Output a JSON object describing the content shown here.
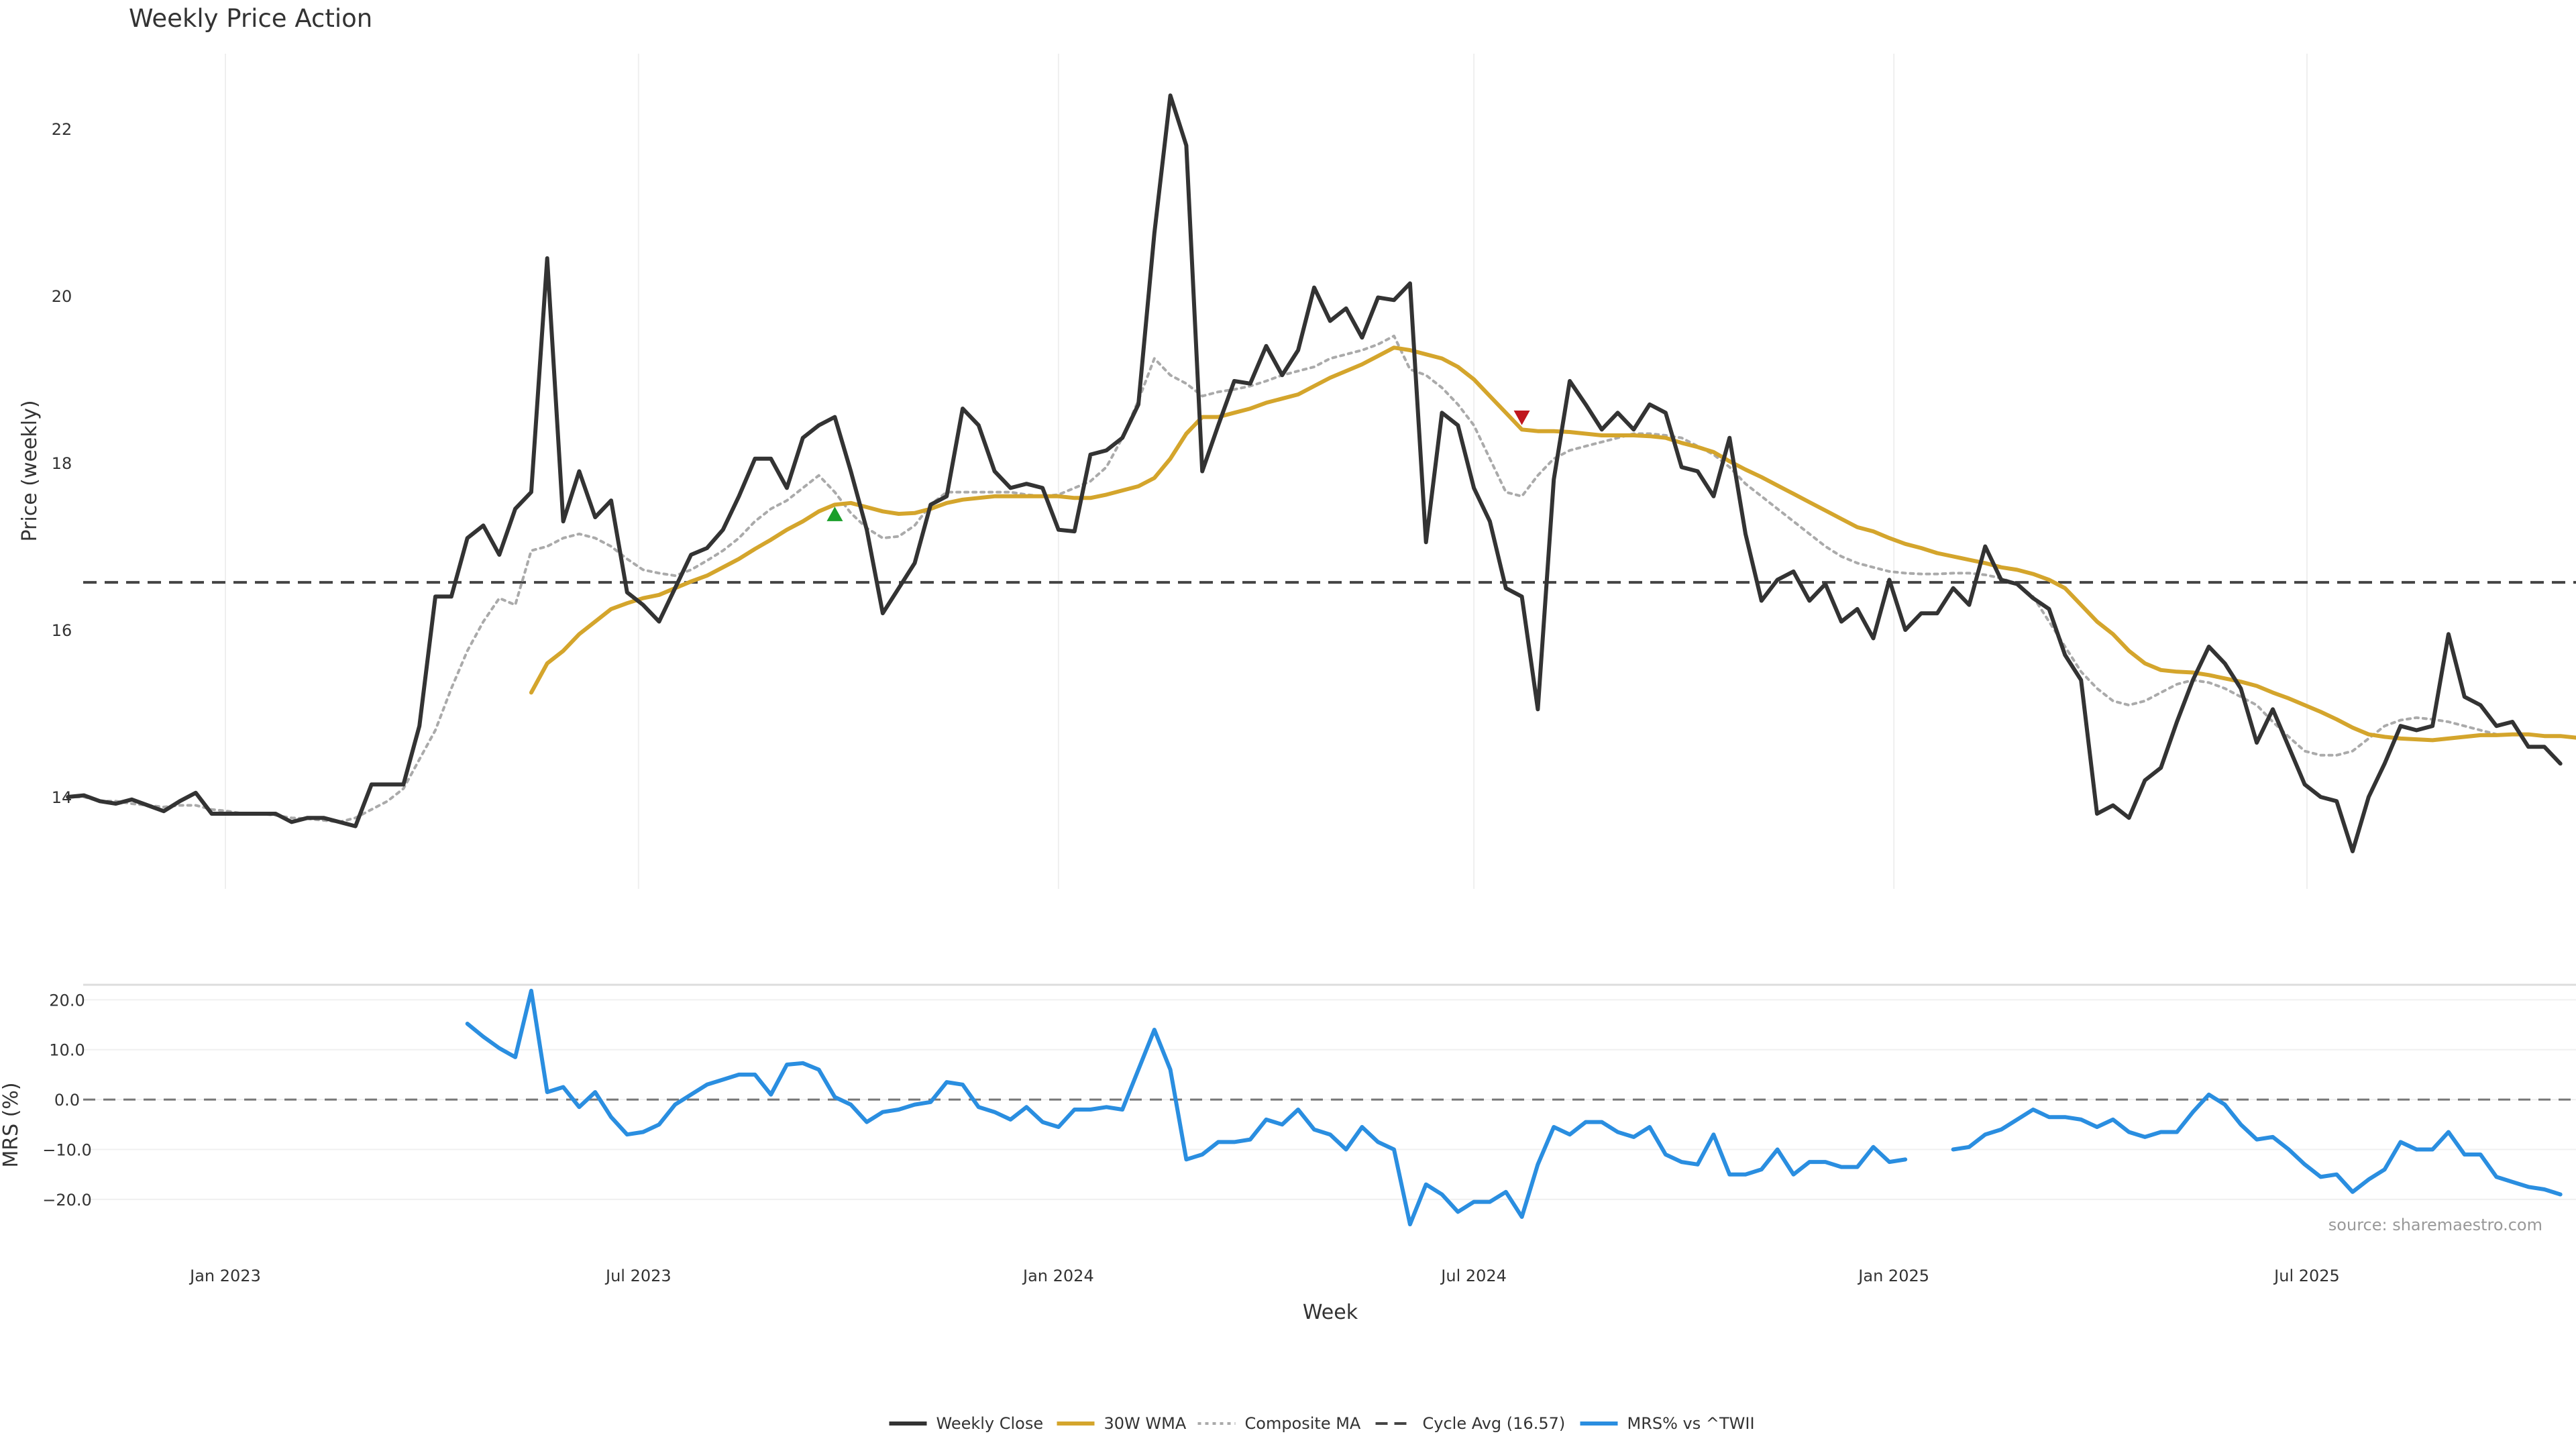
{
  "chart_data": {
    "type": "line",
    "title": "Weekly Price Action",
    "price_panel": {
      "ylabel": "Price (weekly)",
      "ylim": [
        12.9,
        22.9
      ],
      "yticks": [
        14,
        16,
        18,
        20,
        22
      ],
      "cycle_avg": 16.57,
      "x_start": "2022-10-24",
      "series": [
        {
          "name": "Weekly Close",
          "color": "#333333",
          "style": "solid",
          "offset": 0,
          "values": [
            14.0,
            14.02,
            13.95,
            13.92,
            13.97,
            13.9,
            13.83,
            13.95,
            14.05,
            13.8,
            13.8,
            13.8,
            13.8,
            13.8,
            13.7,
            13.75,
            13.75,
            13.7,
            13.65,
            14.15,
            14.15,
            14.15,
            14.85,
            16.4,
            16.4,
            17.1,
            17.25,
            16.9,
            17.45,
            17.65,
            20.45,
            17.3,
            17.9,
            17.35,
            17.55,
            16.45,
            16.3,
            16.1,
            16.5,
            16.9,
            16.98,
            17.2,
            17.6,
            18.05,
            18.05,
            17.7,
            18.3,
            18.45,
            18.55,
            17.9,
            17.2,
            16.2,
            16.5,
            16.8,
            17.5,
            17.6,
            18.65,
            18.45,
            17.9,
            17.7,
            17.75,
            17.7,
            17.2,
            17.18,
            18.1,
            18.15,
            18.3,
            18.7,
            20.75,
            22.4,
            21.8,
            17.9,
            18.45,
            18.98,
            18.95,
            19.4,
            19.05,
            19.35,
            20.1,
            19.7,
            19.85,
            19.5,
            19.98,
            19.95,
            20.15,
            17.05,
            18.6,
            18.45,
            17.7,
            17.3,
            16.5,
            16.4,
            15.05,
            17.8,
            18.98,
            18.7,
            18.4,
            18.6,
            18.4,
            18.7,
            18.6,
            17.95,
            17.9,
            17.6,
            18.3,
            17.15,
            16.35,
            16.6,
            16.7,
            16.35,
            16.55,
            16.1,
            16.25,
            15.9,
            16.6,
            16.0,
            16.2,
            16.2,
            16.5,
            16.3,
            17.0,
            16.6,
            16.55,
            16.38,
            16.25,
            15.7,
            15.4,
            13.8,
            13.9,
            13.75,
            14.2,
            14.35,
            14.9,
            15.4,
            15.8,
            15.6,
            15.3,
            14.65,
            15.05,
            14.6,
            14.15,
            14.0,
            13.95,
            13.35,
            14.0,
            14.4,
            14.85,
            14.8,
            14.85,
            15.95,
            15.2,
            15.1,
            14.85,
            14.9,
            14.6,
            14.6,
            14.4
          ]
        },
        {
          "name": "30W WMA",
          "color": "#d4a52c",
          "style": "solid",
          "offset": 29,
          "values": [
            15.25,
            15.6,
            15.75,
            15.95,
            16.1,
            16.25,
            16.32,
            16.38,
            16.42,
            16.5,
            16.58,
            16.65,
            16.75,
            16.85,
            16.97,
            17.08,
            17.2,
            17.3,
            17.42,
            17.5,
            17.52,
            17.47,
            17.42,
            17.39,
            17.4,
            17.45,
            17.52,
            17.56,
            17.58,
            17.6,
            17.6,
            17.6,
            17.6,
            17.6,
            17.58,
            17.58,
            17.62,
            17.67,
            17.72,
            17.82,
            18.05,
            18.35,
            18.55,
            18.55,
            18.6,
            18.65,
            18.72,
            18.77,
            18.82,
            18.92,
            19.02,
            19.1,
            19.18,
            19.28,
            19.38,
            19.35,
            19.3,
            19.25,
            19.15,
            19.0,
            18.8,
            18.6,
            18.4,
            18.38,
            18.38,
            18.37,
            18.35,
            18.33,
            18.33,
            18.33,
            18.32,
            18.3,
            18.24,
            18.19,
            18.13,
            18.02,
            17.92,
            17.83,
            17.73,
            17.63,
            17.53,
            17.43,
            17.33,
            17.23,
            17.18,
            17.1,
            17.03,
            16.98,
            16.92,
            16.88,
            16.84,
            16.8,
            16.75,
            16.72,
            16.67,
            16.6,
            16.5,
            16.3,
            16.1,
            15.95,
            15.75,
            15.6,
            15.52,
            15.5,
            15.49,
            15.46,
            15.42,
            15.38,
            15.33,
            15.25,
            15.18,
            15.1,
            15.02,
            14.93,
            14.83,
            14.75,
            14.72,
            14.7,
            14.69,
            14.68,
            14.7,
            14.72,
            14.74,
            14.74,
            14.75,
            14.75,
            14.73,
            14.73,
            14.71
          ]
        },
        {
          "name": "Composite MA",
          "color": "#aaaaaa",
          "style": "dotted",
          "offset": 0,
          "values": [
            14.0,
            14.0,
            13.95,
            13.95,
            13.92,
            13.9,
            13.88,
            13.9,
            13.9,
            13.85,
            13.83,
            13.8,
            13.8,
            13.78,
            13.75,
            13.74,
            13.72,
            13.7,
            13.75,
            13.85,
            13.95,
            14.1,
            14.45,
            14.8,
            15.3,
            15.75,
            16.1,
            16.38,
            16.3,
            16.95,
            17.0,
            17.1,
            17.15,
            17.1,
            17.0,
            16.85,
            16.72,
            16.68,
            16.65,
            16.72,
            16.83,
            16.95,
            17.1,
            17.3,
            17.45,
            17.55,
            17.7,
            17.85,
            17.65,
            17.4,
            17.22,
            17.1,
            17.12,
            17.25,
            17.5,
            17.65,
            17.65,
            17.65,
            17.65,
            17.65,
            17.62,
            17.6,
            17.62,
            17.7,
            17.78,
            17.95,
            18.3,
            18.75,
            19.25,
            19.05,
            18.95,
            18.8,
            18.85,
            18.88,
            18.92,
            18.98,
            19.05,
            19.1,
            19.15,
            19.25,
            19.3,
            19.35,
            19.42,
            19.52,
            19.12,
            19.05,
            18.9,
            18.7,
            18.45,
            18.05,
            17.65,
            17.6,
            17.85,
            18.05,
            18.15,
            18.2,
            18.25,
            18.3,
            18.35,
            18.35,
            18.33,
            18.3,
            18.2,
            18.1,
            17.95,
            17.75,
            17.6,
            17.45,
            17.3,
            17.15,
            17.0,
            16.88,
            16.8,
            16.75,
            16.7,
            16.68,
            16.67,
            16.67,
            16.68,
            16.68,
            16.66,
            16.62,
            16.55,
            16.4,
            16.1,
            15.8,
            15.5,
            15.3,
            15.15,
            15.1,
            15.15,
            15.25,
            15.35,
            15.4,
            15.37,
            15.3,
            15.2,
            15.1,
            14.9,
            14.72,
            14.55,
            14.5,
            14.5,
            14.55,
            14.7,
            14.85,
            14.92,
            14.95,
            14.93,
            14.9,
            14.85,
            14.8,
            14.75
          ]
        }
      ],
      "markers": [
        {
          "type": "buy",
          "shape": "triangle-up",
          "color": "#1a9e2a",
          "x": "2023-09-25",
          "y": 17.38
        },
        {
          "type": "sell",
          "shape": "triangle-down",
          "color": "#c0161d",
          "x": "2024-07-22",
          "y": 18.55
        }
      ]
    },
    "mrs_panel": {
      "ylabel": "MRS (%)",
      "ylim": [
        -27,
        23
      ],
      "yticks": [
        20.0,
        10.0,
        0.0,
        -10.0,
        -20.0
      ],
      "ytick_labels": [
        "20.0",
        "10.0",
        "0.0",
        "−10.0",
        "−20.0"
      ],
      "series": [
        {
          "name": "MRS% vs ^TWII",
          "color": "#2a8ee0",
          "style": "solid",
          "offset": 25,
          "values": [
            15.2,
            12.6,
            10.3,
            8.5,
            21.8,
            1.5,
            2.5,
            -1.5,
            1.5,
            -3.5,
            -7.0,
            -6.5,
            -5.0,
            -1.0,
            1.0,
            3.0,
            4.0,
            5.0,
            5.0,
            1.0,
            7.0,
            7.3,
            6.0,
            0.5,
            -1.0,
            -4.5,
            -2.5,
            -2.0,
            -1.0,
            -0.5,
            3.5,
            3.0,
            -1.5,
            -2.5,
            -4.0,
            -1.5,
            -4.5,
            -5.5,
            -2.0,
            -2.0,
            -1.5,
            -2.0,
            6.0,
            14.0,
            6.0,
            -12.0,
            -11.0,
            -8.5,
            -8.5,
            -8.0,
            -4.0,
            -5.0,
            -2.0,
            -6.0,
            -7.0,
            -10.0,
            -5.5,
            -8.5,
            -10.0,
            -25.0,
            -17.0,
            -19.0,
            -22.5,
            -20.5,
            -20.5,
            -18.5,
            -23.5,
            -13.0,
            -5.5,
            -7.0,
            -4.5,
            -4.5,
            -6.5,
            -7.5,
            -5.5,
            -11.0,
            -12.5,
            -13.0,
            -7.0,
            -15.0,
            -15.0,
            -14.0,
            -10.0,
            -15.0,
            -12.5,
            -12.5,
            -13.5,
            -13.5,
            -9.5,
            -12.5,
            -12.0,
            null,
            null,
            -10.0,
            -9.5,
            -7.0,
            -6.0,
            -4.0,
            -2.0,
            -3.5,
            -3.5,
            -4.0,
            -5.5,
            -4.0,
            -6.5,
            -7.5,
            -6.5,
            -6.5,
            -2.5,
            1.0,
            -1.0,
            -5.0,
            -8.0,
            -7.5,
            -10.0,
            -13.0,
            -15.5,
            -15.0,
            -18.5,
            -16.0,
            -14.0,
            -8.5,
            -10.0,
            -10.0,
            -6.5,
            -11.0,
            -11.0,
            -15.5,
            -16.5,
            -17.5,
            -18.0,
            -19.0
          ]
        }
      ],
      "zero_line": true,
      "source": "source: sharemaestro.com"
    },
    "x_axis": {
      "label": "Week",
      "ticks": [
        {
          "label": "Jan 2023",
          "date": "2023-01-01"
        },
        {
          "label": "Jul 2023",
          "date": "2023-07-01"
        },
        {
          "label": "Jan 2024",
          "date": "2024-01-01"
        },
        {
          "label": "Jul 2024",
          "date": "2024-07-01"
        },
        {
          "label": "Jan 2025",
          "date": "2025-01-01"
        },
        {
          "label": "Jul 2025",
          "date": "2025-07-01"
        }
      ]
    },
    "legend": {
      "placement": "bottom-center",
      "items": [
        {
          "label": "Weekly Close",
          "color": "#333333",
          "style": "solid"
        },
        {
          "label": "30W WMA",
          "color": "#d4a52c",
          "style": "solid"
        },
        {
          "label": "Composite MA",
          "color": "#aaaaaa",
          "style": "dotted"
        },
        {
          "label": "Cycle Avg (16.57)",
          "color": "#444444",
          "style": "dashed"
        },
        {
          "label": "MRS% vs ^TWII",
          "color": "#2a8ee0",
          "style": "solid"
        }
      ]
    },
    "grid": true
  }
}
